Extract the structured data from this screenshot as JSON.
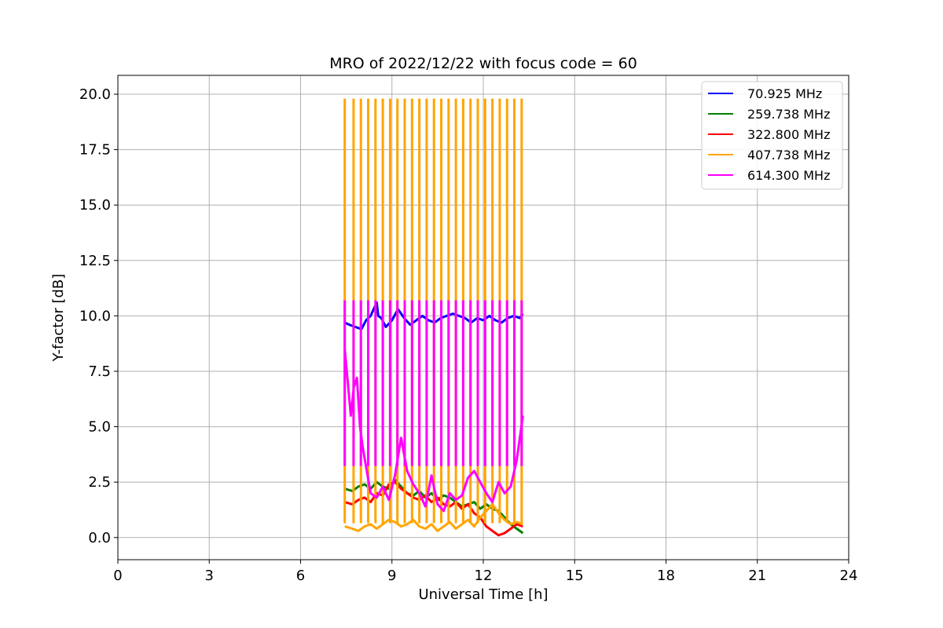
{
  "chart_data": {
    "type": "line",
    "title": "MRO of 2022/12/22 with focus code = 60",
    "xlabel": "Universal Time [h]",
    "ylabel": "Y-factor [dB]",
    "xlim": [
      0,
      24
    ],
    "ylim": [
      -1.0,
      20.85
    ],
    "xticks": [
      0,
      3,
      6,
      9,
      12,
      15,
      18,
      21,
      24
    ],
    "yticks": [
      0.0,
      2.5,
      5.0,
      7.5,
      10.0,
      12.5,
      15.0,
      17.5,
      20.0
    ],
    "xtick_labels": [
      "0",
      "3",
      "6",
      "9",
      "12",
      "15",
      "18",
      "21",
      "24"
    ],
    "ytick_labels": [
      "0.0",
      "2.5",
      "5.0",
      "7.5",
      "10.0",
      "12.5",
      "15.0",
      "17.5",
      "20.0"
    ],
    "grid": true,
    "legend_position": "top-right",
    "series": [
      {
        "name": "70.925 MHz",
        "color": "#0000ff",
        "x": [
          7.45,
          7.6,
          7.8,
          8.0,
          8.15,
          8.3,
          8.5,
          8.55,
          8.65,
          8.8,
          9.0,
          9.2,
          9.4,
          9.6,
          9.8,
          10.0,
          10.2,
          10.4,
          10.6,
          10.8,
          11.0,
          11.2,
          11.4,
          11.6,
          11.8,
          12.0,
          12.2,
          12.4,
          12.6,
          12.8,
          13.0,
          13.2,
          13.3
        ],
        "y": [
          9.7,
          9.6,
          9.5,
          9.4,
          9.8,
          10.0,
          10.6,
          10.0,
          9.9,
          9.5,
          9.8,
          10.3,
          9.9,
          9.6,
          9.8,
          10.0,
          9.8,
          9.7,
          9.9,
          10.0,
          10.1,
          10.0,
          9.9,
          9.7,
          9.9,
          9.8,
          10.0,
          9.8,
          9.7,
          9.9,
          10.0,
          9.9,
          10.1
        ]
      },
      {
        "name": "259.738 MHz",
        "color": "#008000",
        "x": [
          7.45,
          7.7,
          7.9,
          8.1,
          8.3,
          8.5,
          8.7,
          8.9,
          9.1,
          9.3,
          9.5,
          9.7,
          9.9,
          10.1,
          10.3,
          10.5,
          10.7,
          10.9,
          11.1,
          11.3,
          11.5,
          11.7,
          11.9,
          12.1,
          12.3,
          12.5,
          12.7,
          12.9,
          13.1,
          13.3
        ],
        "y": [
          2.2,
          2.1,
          2.3,
          2.4,
          2.2,
          2.5,
          2.3,
          2.2,
          2.6,
          2.3,
          2.0,
          1.9,
          2.1,
          1.8,
          2.0,
          1.7,
          1.9,
          1.8,
          1.6,
          1.4,
          1.5,
          1.6,
          1.3,
          1.5,
          1.3,
          1.2,
          0.9,
          0.6,
          0.4,
          0.2
        ]
      },
      {
        "name": "322.800 MHz",
        "color": "#ff0000",
        "x": [
          7.45,
          7.7,
          7.9,
          8.1,
          8.3,
          8.5,
          8.7,
          8.9,
          9.1,
          9.3,
          9.5,
          9.7,
          9.9,
          10.1,
          10.3,
          10.5,
          10.7,
          10.9,
          11.1,
          11.3,
          11.5,
          11.7,
          11.9,
          12.1,
          12.3,
          12.5,
          12.7,
          12.9,
          13.1,
          13.3
        ],
        "y": [
          1.6,
          1.5,
          1.7,
          1.8,
          1.6,
          2.0,
          1.9,
          2.4,
          2.5,
          2.2,
          2.0,
          1.8,
          1.7,
          1.9,
          1.6,
          1.8,
          1.5,
          1.4,
          1.6,
          1.3,
          1.5,
          1.1,
          0.9,
          0.5,
          0.3,
          0.1,
          0.2,
          0.4,
          0.6,
          0.5
        ]
      },
      {
        "name": "407.738 MHz",
        "color": "#ffa500",
        "x": [
          7.45,
          7.7,
          7.9,
          8.1,
          8.3,
          8.5,
          8.7,
          8.9,
          9.1,
          9.3,
          9.5,
          9.7,
          9.9,
          10.1,
          10.3,
          10.5,
          10.7,
          10.9,
          11.1,
          11.3,
          11.5,
          11.7,
          11.9,
          12.1,
          12.3,
          12.5,
          12.7,
          12.9,
          13.1,
          13.3
        ],
        "y": [
          0.5,
          0.4,
          0.3,
          0.5,
          0.6,
          0.4,
          0.6,
          0.8,
          0.7,
          0.5,
          0.6,
          0.8,
          0.5,
          0.4,
          0.6,
          0.3,
          0.5,
          0.7,
          0.4,
          0.6,
          0.8,
          0.5,
          0.9,
          1.2,
          1.5,
          1.1,
          0.8,
          0.6,
          0.7,
          0.6
        ],
        "spike_x": [
          7.45,
          7.74,
          7.98,
          8.22,
          8.46,
          8.7,
          8.94,
          9.18,
          9.42,
          9.66,
          9.9,
          10.14,
          10.38,
          10.62,
          10.86,
          11.1,
          11.34,
          11.58,
          11.82,
          12.06,
          12.3,
          12.54,
          12.78,
          13.02,
          13.26
        ],
        "spike_peak": 19.8
      },
      {
        "name": "614.300 MHz",
        "color": "#ff00ff",
        "x": [
          7.45,
          7.55,
          7.65,
          7.75,
          7.85,
          7.95,
          8.05,
          8.15,
          8.3,
          8.5,
          8.7,
          8.9,
          9.1,
          9.3,
          9.5,
          9.7,
          9.9,
          10.1,
          10.3,
          10.5,
          10.7,
          10.9,
          11.1,
          11.3,
          11.5,
          11.7,
          11.9,
          12.1,
          12.3,
          12.5,
          12.7,
          12.9,
          13.1,
          13.3
        ],
        "y": [
          8.5,
          7.0,
          5.5,
          6.8,
          7.2,
          5.0,
          4.0,
          3.2,
          2.0,
          1.8,
          2.3,
          1.7,
          2.8,
          4.5,
          3.0,
          2.4,
          2.0,
          1.4,
          2.8,
          1.5,
          1.2,
          2.0,
          1.7,
          1.9,
          2.7,
          3.0,
          2.5,
          2.0,
          1.6,
          2.5,
          2.0,
          2.3,
          3.5,
          5.5
        ],
        "spike_x": [
          7.45,
          7.74,
          7.98,
          8.22,
          8.46,
          8.7,
          8.94,
          9.18,
          9.42,
          9.66,
          9.9,
          10.14,
          10.38,
          10.62,
          10.86,
          11.1,
          11.34,
          11.58,
          11.82,
          12.06,
          12.3,
          12.54,
          12.78,
          13.02,
          13.26
        ],
        "spike_peak": 10.7
      }
    ]
  }
}
